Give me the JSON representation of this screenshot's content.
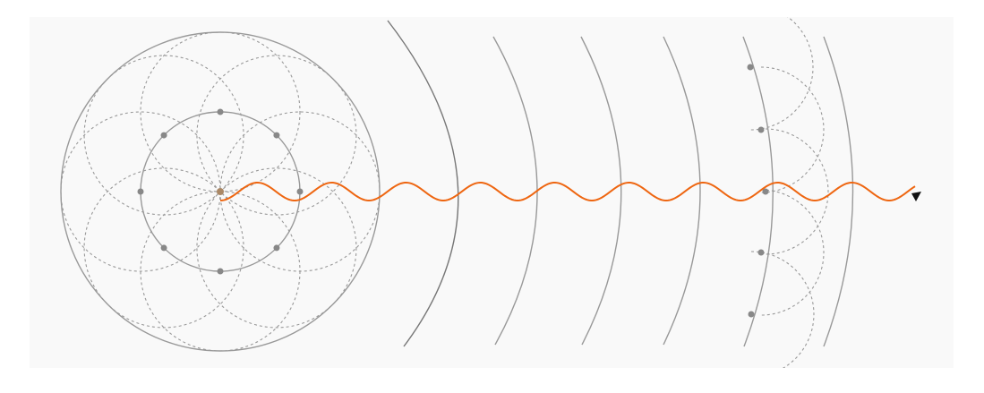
{
  "figure": {
    "description_free": true,
    "colors": {
      "background": "#f9f9f9",
      "page": "#ffffff",
      "line": "#999999",
      "dashed": "#999999",
      "point": "#888888",
      "source_point": "#aa8866",
      "wave": "#ee6611",
      "arrow": "#111111"
    }
  }
}
